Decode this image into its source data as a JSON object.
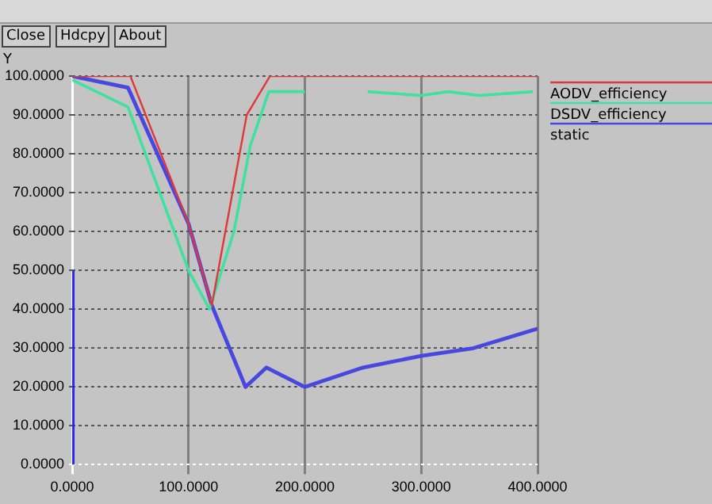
{
  "chart_data": {
    "type": "line",
    "ylabel": "Y",
    "annotations": [
      "Close",
      "Hdcpy",
      "About"
    ],
    "xlim": [
      0,
      400
    ],
    "xticks": [
      {
        "value": 0,
        "label": "0.0000"
      },
      {
        "value": 100,
        "label": "100.0000"
      },
      {
        "value": 200,
        "label": "200.0000"
      },
      {
        "value": 300,
        "label": "300.0000"
      },
      {
        "value": 400,
        "label": "400.0000"
      }
    ],
    "ylim": [
      0,
      100
    ],
    "yticks": [
      {
        "value": 0,
        "label": "0.0000"
      },
      {
        "value": 10,
        "label": "10.0000"
      },
      {
        "value": 20,
        "label": "20.0000"
      },
      {
        "value": 30,
        "label": "30.0000"
      },
      {
        "value": 40,
        "label": "40.0000"
      },
      {
        "value": 50,
        "label": "50.0000"
      },
      {
        "value": 60,
        "label": "60.0000"
      },
      {
        "value": 70,
        "label": "70.0000"
      },
      {
        "value": 80,
        "label": "80.0000"
      },
      {
        "value": 90,
        "label": "90.0000"
      },
      {
        "value": 100,
        "label": "100.0000"
      }
    ],
    "grid": true,
    "legend": "right",
    "marker": "none",
    "line_style": "solid",
    "series": [
      {
        "name": "AODV_efficiency",
        "color": "#e03838",
        "x": [
          0,
          50,
          100,
          120,
          150,
          170,
          400
        ],
        "values": [
          100,
          100,
          62,
          41,
          90,
          100,
          100
        ]
      },
      {
        "name": "DSDV_efficiency",
        "color": "#40e0a0",
        "x": [
          0,
          48,
          100,
          118,
          139,
          153,
          169,
          200,
          227,
          254,
          300,
          323,
          350,
          396
        ],
        "values": [
          99,
          92,
          50,
          40,
          60,
          82,
          96,
          96,
          null,
          96,
          95,
          96,
          95,
          96
        ]
      },
      {
        "name": "static",
        "color": "#4848e0",
        "x": [
          0,
          48,
          100,
          120,
          149,
          167,
          200,
          250,
          300,
          345,
          400
        ],
        "values": [
          100,
          97,
          62,
          41,
          20,
          25,
          20,
          25,
          28,
          30,
          35
        ]
      },
      {
        "color": "#2828f0",
        "x": [
          0,
          0
        ],
        "values": [
          0,
          50
        ]
      }
    ]
  }
}
